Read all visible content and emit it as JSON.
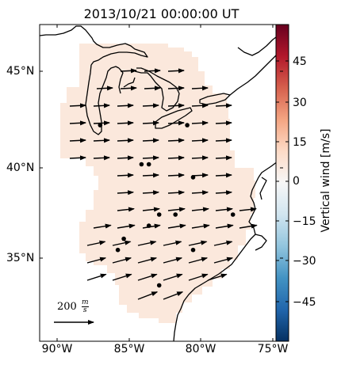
{
  "title": "2013/10/21 00:00:00 UT",
  "map": {
    "lat_labels": [
      "45°N",
      "40°N",
      "35°N"
    ],
    "lon_labels": [
      "90°W",
      "85°W",
      "80°W",
      "75°W"
    ],
    "extent": {
      "lon_min": -91,
      "lon_max": -74.5,
      "lat_min": 30.5,
      "lat_max": 47.5
    },
    "domain_color": "#fbe8dc",
    "marker_color": "#000000",
    "stations": [
      {
        "lon": -86.9,
        "lat": 42.1
      },
      {
        "lon": -81.0,
        "lat": 42.1
      },
      {
        "lon": -84.1,
        "lat": 40.0
      },
      {
        "lon": -83.6,
        "lat": 40.0
      },
      {
        "lon": -80.6,
        "lat": 39.3
      },
      {
        "lon": -82.9,
        "lat": 37.3
      },
      {
        "lon": -81.8,
        "lat": 37.3
      },
      {
        "lon": -77.9,
        "lat": 37.3
      },
      {
        "lon": -83.6,
        "lat": 36.7
      },
      {
        "lon": -85.3,
        "lat": 36.0
      },
      {
        "lon": -85.7,
        "lat": 35.4
      },
      {
        "lon": -80.6,
        "lat": 35.4
      },
      {
        "lon": -82.9,
        "lat": 33.5
      }
    ],
    "wind_arrows_note": "Horizontal wind vectors on a regular grid, mostly westerly, rotating to west-southwesterly in the south.",
    "scale_arrow": {
      "label": "200 m/s",
      "label_number": "200",
      "label_num": "m",
      "label_den": "s"
    }
  },
  "colorbar": {
    "label": "Vertical wind [m/s]",
    "ticks": [
      "45",
      "30",
      "15",
      "0",
      "−15",
      "−30",
      "−45"
    ],
    "range": [
      -55,
      55
    ],
    "colormap": "RdBu_r",
    "colors": [
      "#053061",
      "#2166ac",
      "#4393c3",
      "#92c5de",
      "#d1e5f0",
      "#f7f7f7",
      "#fddbc7",
      "#f4a582",
      "#d6604d",
      "#b2182b",
      "#67001f"
    ]
  }
}
